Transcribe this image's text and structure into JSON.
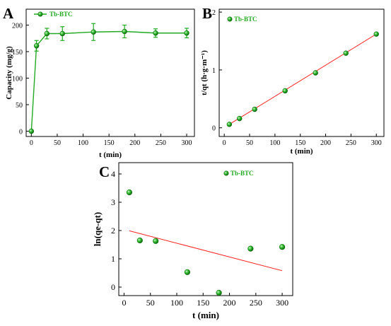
{
  "colors": {
    "series": "#22aa22",
    "fit": "#ff2020",
    "marker_edge": "#0b6e0b"
  },
  "chart_data": [
    {
      "panel": "A",
      "type": "line",
      "xlabel": "t (min)",
      "ylabel": "Capacity (mg/g)",
      "xlim": [
        -10,
        315
      ],
      "ylim": [
        -10,
        230
      ],
      "xticks": [
        "0",
        "50",
        "100",
        "150",
        "200",
        "250",
        "300"
      ],
      "yticks": [
        "0",
        "50",
        "100",
        "150",
        "200"
      ],
      "legend_position": "top-left",
      "series": [
        {
          "name": "Tb-BTC",
          "x": [
            0,
            10,
            30,
            60,
            120,
            180,
            240,
            300
          ],
          "y": [
            0,
            161,
            184,
            184,
            187,
            188,
            185,
            185
          ],
          "error": [
            0,
            10,
            10,
            13,
            16,
            12,
            8,
            9
          ]
        }
      ]
    },
    {
      "panel": "B",
      "type": "scatter",
      "xlabel": "t (min)",
      "ylabel": "t/qt (h·g·m⁻¹)",
      "xlim": [
        -10,
        315
      ],
      "ylim": [
        -0.15,
        2.05
      ],
      "xticks": [
        "0",
        "50",
        "100",
        "150",
        "200",
        "250",
        "300"
      ],
      "yticks": [
        "0",
        "1",
        "2"
      ],
      "legend_position": "top-left",
      "series": [
        {
          "name": "Tb-BTC",
          "x": [
            10,
            30,
            60,
            120,
            180,
            240,
            300
          ],
          "y": [
            0.06,
            0.16,
            0.32,
            0.64,
            0.95,
            1.29,
            1.62
          ]
        }
      ],
      "fit_line": {
        "x": [
          10,
          300
        ],
        "y": [
          0.06,
          1.62
        ]
      }
    },
    {
      "panel": "C",
      "type": "scatter",
      "xlabel": "t (min)",
      "ylabel": "ln(qe-qt)",
      "xlim": [
        -10,
        320
      ],
      "ylim": [
        -0.3,
        4.4
      ],
      "xticks": [
        "0",
        "50",
        "100",
        "150",
        "200",
        "250",
        "300"
      ],
      "yticks": [
        "0",
        "1",
        "2",
        "3",
        "4"
      ],
      "legend_position": "top-center",
      "series": [
        {
          "name": "Tb-BTC",
          "x": [
            10,
            30,
            60,
            120,
            180,
            240,
            300
          ],
          "y": [
            3.35,
            1.65,
            1.63,
            0.53,
            -0.2,
            1.36,
            1.42
          ]
        }
      ],
      "fit_line": {
        "x": [
          10,
          300
        ],
        "y": [
          1.99,
          0.58
        ]
      }
    }
  ]
}
